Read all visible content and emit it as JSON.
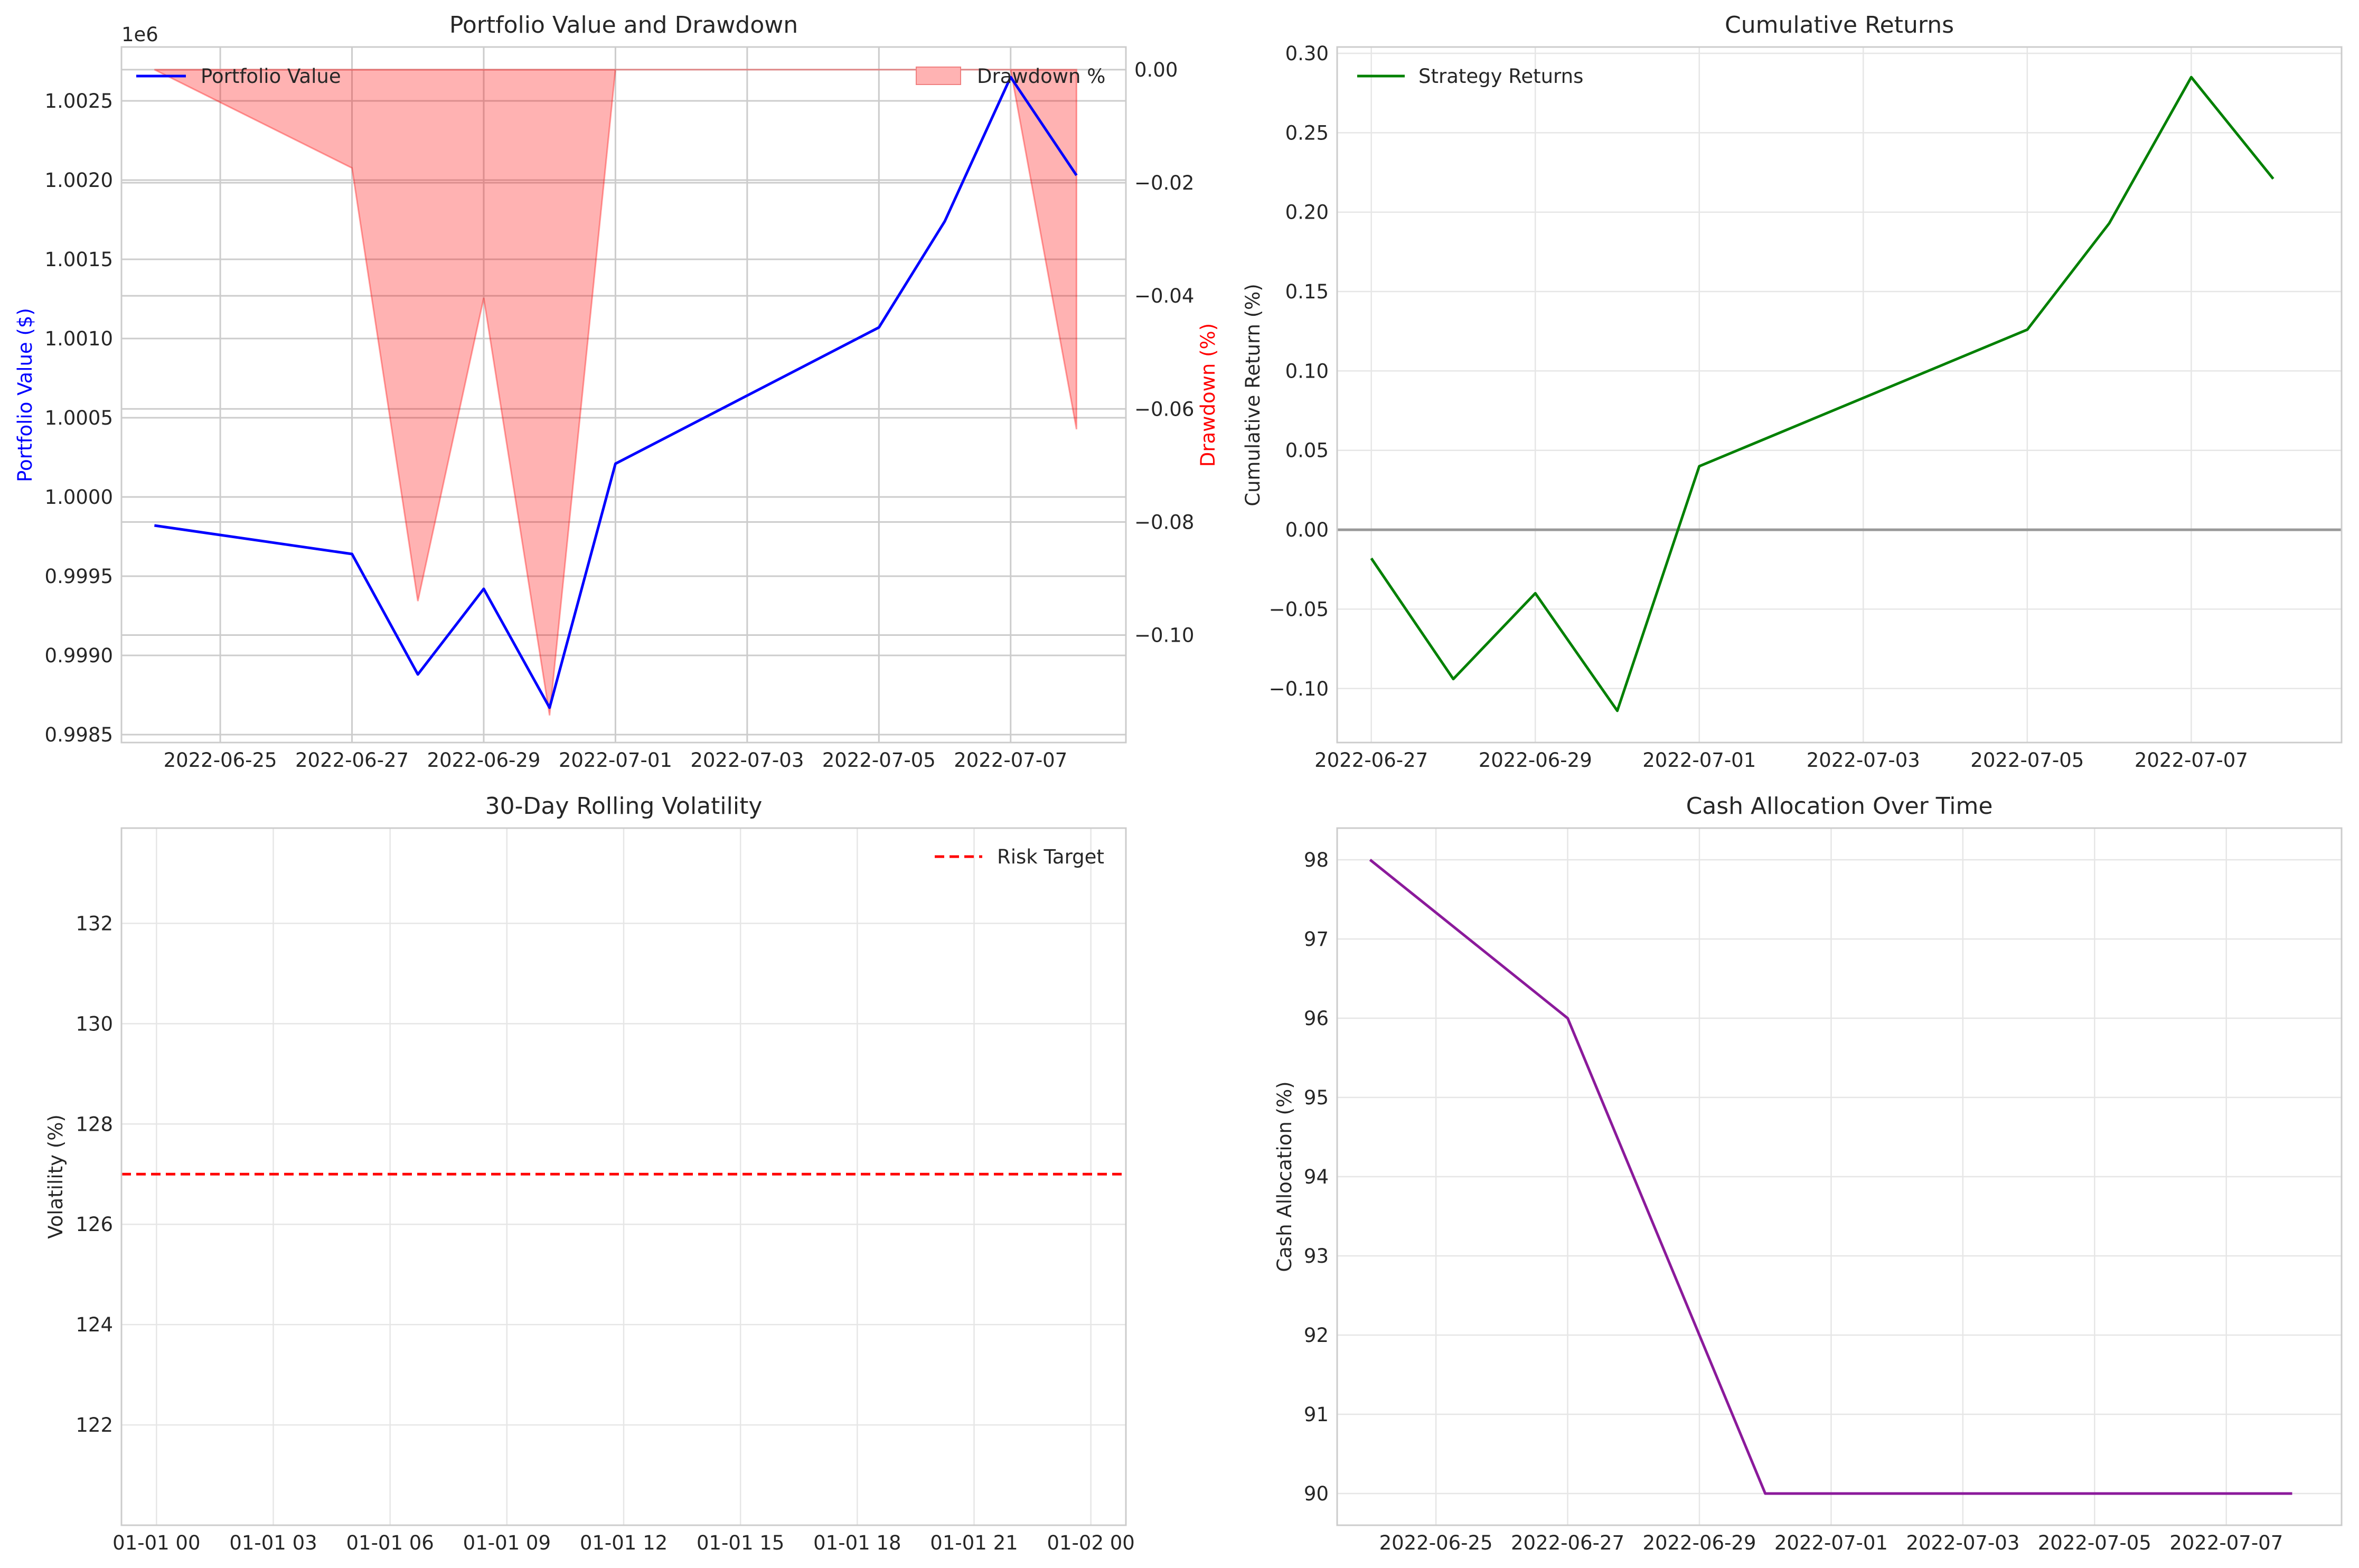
{
  "chart_data": [
    {
      "type": "line",
      "title": "Portfolio Value and Drawdown",
      "ylabel": "Portfolio Value ($)",
      "ylabel_right": "Drawdown (%)",
      "y_offset_label": "1e6",
      "x": [
        "2022-06-24",
        "2022-06-27",
        "2022-06-28",
        "2022-06-29",
        "2022-06-30",
        "2022-07-01",
        "2022-07-05",
        "2022-07-06",
        "2022-07-07",
        "2022-07-08"
      ],
      "xlim": [
        "2022-06-23T12:00",
        "2022-07-08T18:00"
      ],
      "xticks": [
        "2022-06-25",
        "2022-06-27",
        "2022-06-29",
        "2022-07-01",
        "2022-07-03",
        "2022-07-05",
        "2022-07-07"
      ],
      "ylim": [
        0.99845,
        1.00284
      ],
      "yticks": [
        0.9985,
        0.999,
        0.9995,
        1.0,
        1.0005,
        1.001,
        1.0015,
        1.002,
        1.0025
      ],
      "ylim_right": [
        -0.119,
        0.004
      ],
      "yticks_right": [
        0.0,
        -0.02,
        -0.04,
        -0.06,
        -0.08,
        -0.1
      ],
      "grid": true,
      "legend_left": "top-left",
      "legend_right": "top-right",
      "series": [
        {
          "name": "Portfolio Value",
          "axis": "left",
          "color": "#0000ff",
          "values": [
            0.99982,
            0.99964,
            0.99888,
            0.99942,
            0.99867,
            1.00021,
            1.00107,
            1.00174,
            1.00265,
            1.00203
          ]
        },
        {
          "name": "Drawdown %",
          "axis": "right",
          "style": "fill",
          "color": "#ff0000",
          "values": [
            0.0,
            -0.0174,
            -0.094,
            -0.0404,
            -0.1142,
            0.0,
            0.0,
            0.0,
            0.0,
            -0.0636
          ]
        }
      ]
    },
    {
      "type": "line",
      "title": "Cumulative Returns",
      "ylabel": "Cumulative Return (%)",
      "x": [
        "2022-06-27",
        "2022-06-28",
        "2022-06-29",
        "2022-06-30",
        "2022-07-01",
        "2022-07-05",
        "2022-07-06",
        "2022-07-07",
        "2022-07-08"
      ],
      "xlim": [
        "2022-06-26T14:00",
        "2022-07-08T20:00"
      ],
      "xticks": [
        "2022-06-27",
        "2022-06-29",
        "2022-07-01",
        "2022-07-03",
        "2022-07-05",
        "2022-07-07"
      ],
      "ylim": [
        -0.134,
        0.304
      ],
      "yticks": [
        -0.1,
        -0.05,
        0.0,
        0.05,
        0.1,
        0.15,
        0.2,
        0.25,
        0.3
      ],
      "grid": true,
      "legend": "top-left",
      "hline": {
        "y": 0,
        "color": "#999999"
      },
      "series": [
        {
          "name": "Strategy Returns",
          "color": "#008000",
          "values": [
            -0.018,
            -0.094,
            -0.04,
            -0.114,
            0.04,
            0.126,
            0.193,
            0.285,
            0.221
          ]
        }
      ]
    },
    {
      "type": "line",
      "title": "30-Day Rolling Volatility",
      "ylabel": "Volatility (%)",
      "xticks": [
        "01-01 00",
        "01-01 03",
        "01-01 06",
        "01-01 09",
        "01-01 12",
        "01-01 15",
        "01-01 18",
        "01-01 21",
        "01-02 00"
      ],
      "xlim": [
        -0.9,
        24.9
      ],
      "ylim": [
        120.0,
        133.9
      ],
      "yticks": [
        122,
        124,
        126,
        128,
        130,
        132
      ],
      "grid": true,
      "legend": "top-right",
      "series": [
        {
          "name": "Risk Target",
          "style": "dashed",
          "color": "#ff0000",
          "value": 127
        }
      ]
    },
    {
      "type": "line",
      "title": "Cash Allocation Over Time",
      "ylabel": "Cash Allocation (%)",
      "x": [
        "2022-06-24",
        "2022-06-27",
        "2022-06-30",
        "2022-07-08"
      ],
      "xlim": [
        "2022-06-23T12:00",
        "2022-07-08T18:00"
      ],
      "xticks": [
        "2022-06-25",
        "2022-06-27",
        "2022-06-29",
        "2022-07-01",
        "2022-07-03",
        "2022-07-05",
        "2022-07-07"
      ],
      "ylim": [
        89.6,
        98.4
      ],
      "yticks": [
        90,
        91,
        92,
        93,
        94,
        95,
        96,
        97,
        98
      ],
      "grid": true,
      "series": [
        {
          "color": "#8b1a9b",
          "values": [
            98,
            96,
            90,
            90
          ]
        }
      ]
    }
  ]
}
